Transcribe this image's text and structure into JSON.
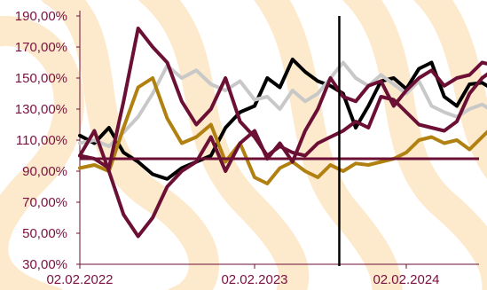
{
  "chart_data": {
    "type": "line",
    "y_tick_labels": [
      "30,00%",
      "50,00%",
      "70,00%",
      "90,00%",
      "110,00%",
      "130,00%",
      "150,00%",
      "170,00%",
      "190,00%"
    ],
    "y_ticks": [
      30,
      50,
      70,
      90,
      110,
      130,
      150,
      170,
      190
    ],
    "x_tick_labels": [
      "02.02.2022",
      "02.02.2023",
      "02.02.2024"
    ],
    "x_ticks": [
      0,
      12,
      24
    ],
    "x_range": [
      0,
      31.5
    ],
    "ylim": [
      30,
      190
    ],
    "reference_line": 98,
    "vertical_marker": 18.7,
    "grid": false,
    "background_pattern": "light orange stripes",
    "series": [
      {
        "color": "#000000",
        "x": [
          0,
          1,
          2,
          3,
          4,
          5,
          6,
          7,
          8,
          9,
          10,
          11,
          12,
          13,
          14,
          15,
          16,
          17,
          18,
          19,
          20,
          21,
          22,
          23,
          24,
          25,
          26,
          27,
          28,
          29,
          30,
          31
        ],
        "values": [
          113,
          108,
          118,
          102,
          96,
          88,
          85,
          92,
          96,
          100,
          118,
          128,
          132,
          150,
          144,
          162,
          154,
          148,
          145,
          140,
          118,
          132,
          148,
          150,
          143,
          156,
          160,
          138,
          132,
          146,
          147,
          142
        ]
      },
      {
        "color": "#c8c8c8",
        "x": [
          0,
          1,
          2,
          3,
          4,
          5,
          6,
          7,
          8,
          9,
          10,
          11,
          12,
          13,
          14,
          15,
          16,
          17,
          18,
          19,
          20,
          21,
          22,
          23,
          24,
          25,
          26,
          27,
          28,
          29,
          30,
          31
        ],
        "values": [
          108,
          110,
          106,
          115,
          125,
          140,
          158,
          150,
          155,
          146,
          142,
          148,
          136,
          138,
          130,
          142,
          135,
          140,
          150,
          160,
          150,
          145,
          152,
          146,
          140,
          148,
          132,
          128,
          125,
          130,
          133,
          128
        ]
      },
      {
        "color": "#b08010",
        "x": [
          0,
          1,
          2,
          3,
          4,
          5,
          6,
          7,
          8,
          9,
          10,
          11,
          12,
          13,
          14,
          15,
          16,
          17,
          18,
          19,
          20,
          21,
          22,
          23,
          24,
          25,
          26,
          27,
          28,
          29,
          30,
          31
        ],
        "values": [
          92,
          94,
          90,
          118,
          144,
          150,
          124,
          108,
          112,
          120,
          96,
          108,
          86,
          82,
          92,
          96,
          90,
          86,
          94,
          90,
          95,
          94,
          96,
          98,
          102,
          110,
          112,
          108,
          110,
          104,
          112,
          120
        ]
      },
      {
        "color": "#6b0f35",
        "x": [
          0,
          1,
          2,
          3,
          4,
          5,
          6,
          7,
          8,
          9,
          10,
          11,
          12,
          13,
          14,
          15,
          16,
          17,
          18,
          19,
          20,
          21,
          22,
          23,
          24,
          25,
          26,
          27,
          28,
          29,
          30,
          31
        ],
        "values": [
          100,
          98,
          92,
          135,
          182,
          170,
          160,
          135,
          120,
          130,
          150,
          122,
          112,
          100,
          106,
          102,
          100,
          108,
          112,
          116,
          122,
          118,
          138,
          136,
          128,
          120,
          118,
          116,
          122,
          140,
          150,
          156
        ]
      },
      {
        "color": "#6b0f35",
        "x": [
          0,
          1,
          2,
          3,
          4,
          5,
          6,
          7,
          8,
          9,
          10,
          11,
          12,
          13,
          14,
          15,
          16,
          17,
          18,
          19,
          20,
          21,
          22,
          23,
          24,
          25,
          26,
          27,
          28,
          29,
          30,
          31
        ],
        "values": [
          100,
          116,
          90,
          62,
          48,
          60,
          80,
          90,
          96,
          112,
          90,
          108,
          116,
          98,
          108,
          96,
          116,
          130,
          150,
          138,
          135,
          145,
          148,
          132,
          142,
          150,
          155,
          145,
          150,
          152,
          160,
          158
        ]
      }
    ]
  }
}
